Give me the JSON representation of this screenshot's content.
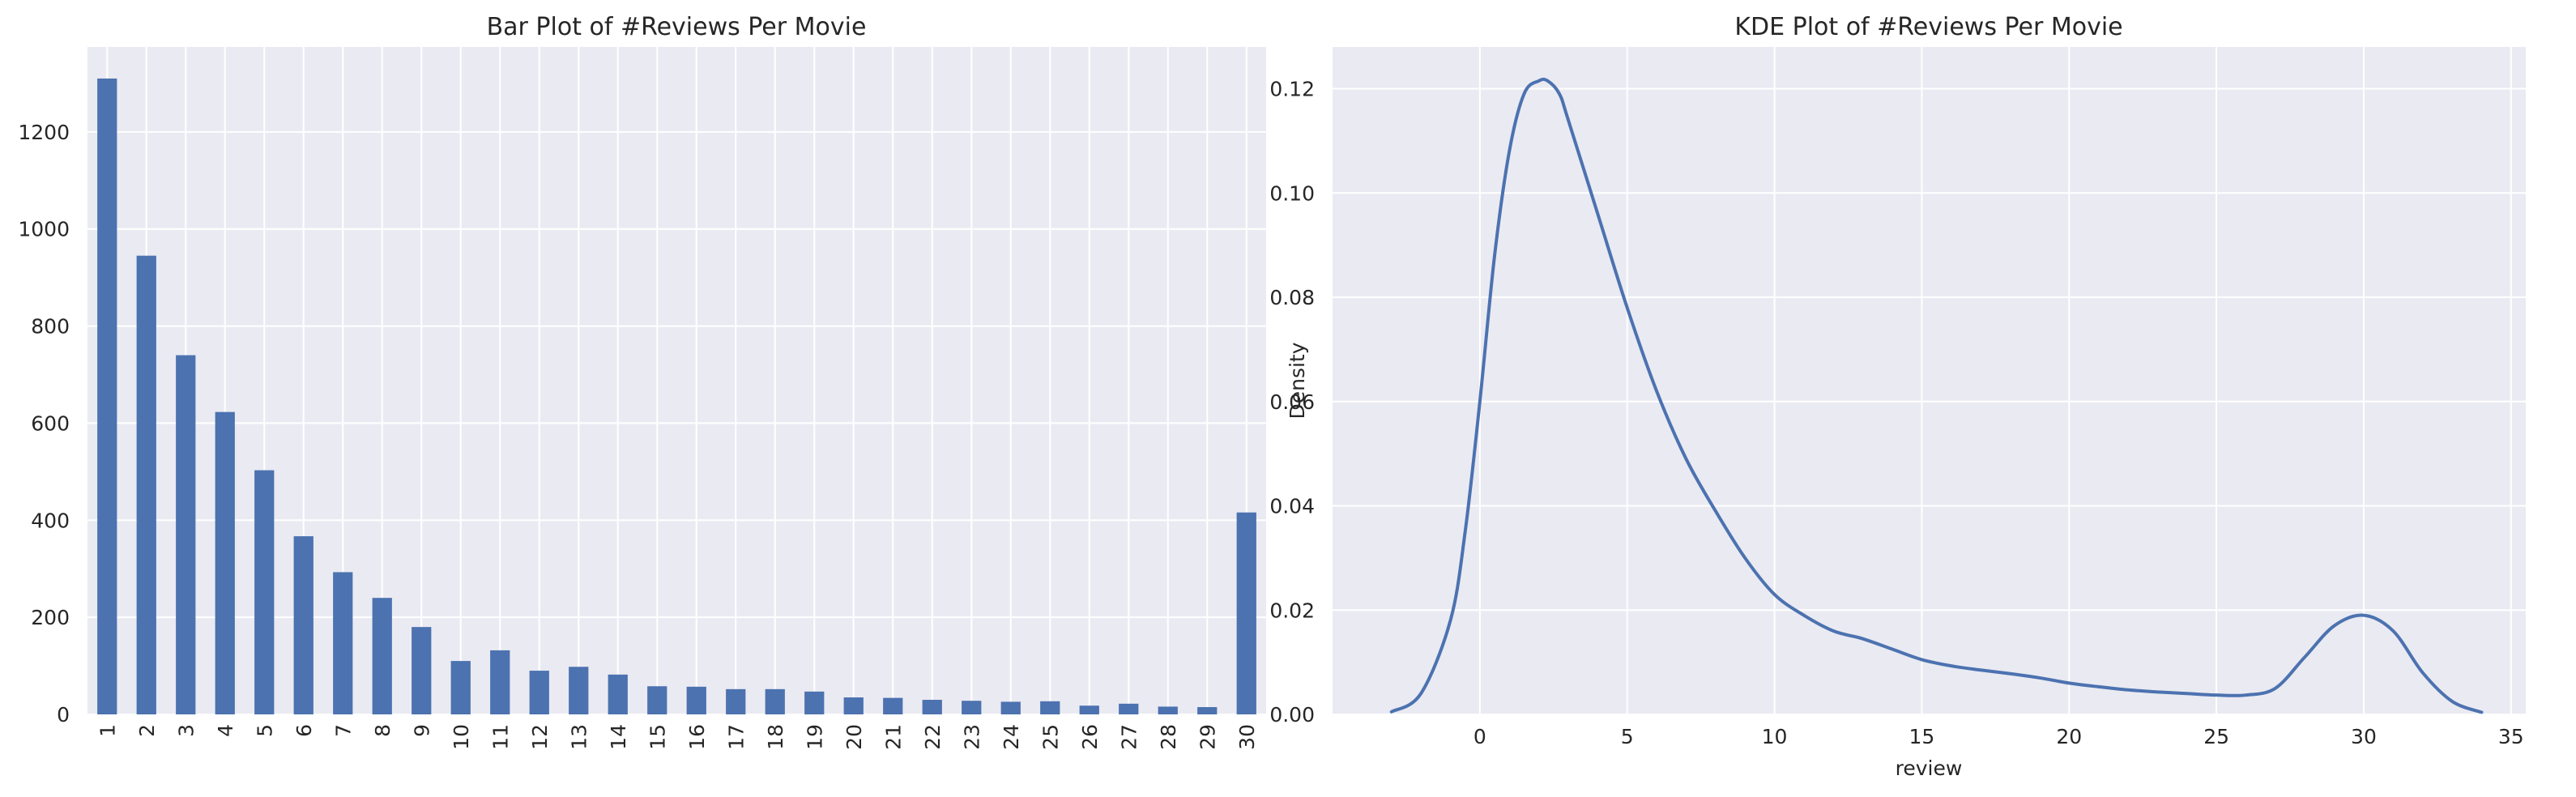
{
  "chart_data": [
    {
      "type": "bar",
      "title": "Bar Plot of #Reviews Per Movie",
      "xlabel": "",
      "ylabel": "",
      "categories": [
        "1",
        "2",
        "3",
        "4",
        "5",
        "6",
        "7",
        "8",
        "9",
        "10",
        "11",
        "12",
        "13",
        "14",
        "15",
        "16",
        "17",
        "18",
        "19",
        "20",
        "21",
        "22",
        "23",
        "24",
        "25",
        "26",
        "27",
        "28",
        "29",
        "30"
      ],
      "values": [
        1310,
        945,
        740,
        623,
        503,
        367,
        293,
        240,
        180,
        110,
        132,
        90,
        98,
        82,
        58,
        57,
        52,
        52,
        47,
        35,
        34,
        30,
        28,
        26,
        27,
        18,
        22,
        16,
        15,
        416
      ],
      "ylim": [
        0,
        1375
      ],
      "yticks": [
        0,
        200,
        400,
        600,
        800,
        1000,
        1200
      ],
      "color": "#4c72b0",
      "background": "#eaeaf2",
      "grid": true
    },
    {
      "type": "line",
      "title": "KDE Plot of #Reviews Per Movie",
      "xlabel": "review",
      "ylabel": "Density",
      "x": [
        -3,
        -2,
        -1,
        -0.5,
        0,
        0.5,
        1,
        1.5,
        2,
        2.3,
        2.7,
        3,
        4,
        5,
        6,
        7,
        8,
        9,
        10,
        11,
        12,
        13,
        14,
        15,
        16,
        17,
        18,
        19,
        20,
        21,
        22,
        23,
        24,
        25,
        26,
        27,
        28,
        29,
        30,
        31,
        32,
        33,
        34
      ],
      "y": [
        0.0005,
        0.004,
        0.018,
        0.035,
        0.06,
        0.088,
        0.108,
        0.119,
        0.1215,
        0.1215,
        0.119,
        0.114,
        0.096,
        0.078,
        0.062,
        0.049,
        0.039,
        0.03,
        0.023,
        0.019,
        0.016,
        0.0145,
        0.0125,
        0.0105,
        0.0093,
        0.0085,
        0.0078,
        0.007,
        0.006,
        0.0053,
        0.0047,
        0.0043,
        0.004,
        0.0037,
        0.0037,
        0.005,
        0.011,
        0.017,
        0.019,
        0.016,
        0.008,
        0.0025,
        0.0004
      ],
      "xlim": [
        -5,
        35.5
      ],
      "ylim": [
        0,
        0.128
      ],
      "xticks": [
        0,
        5,
        10,
        15,
        20,
        25,
        30,
        35
      ],
      "yticks": [
        0.0,
        0.02,
        0.04,
        0.06,
        0.08,
        0.1,
        0.12
      ],
      "ytick_labels": [
        "0.00",
        "0.02",
        "0.04",
        "0.06",
        "0.08",
        "0.10",
        "0.12"
      ],
      "color": "#4c72b0",
      "background": "#eaeaf2",
      "grid": true
    }
  ]
}
